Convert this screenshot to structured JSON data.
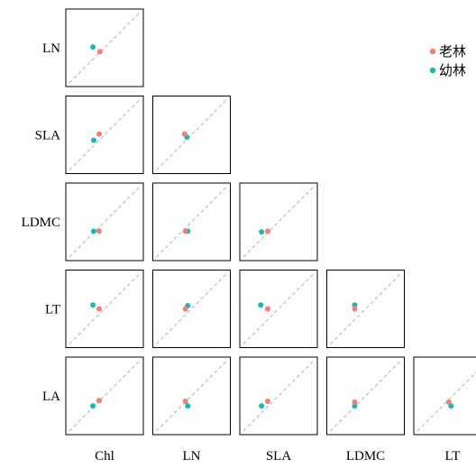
{
  "chart_data": {
    "type": "scatter",
    "variables_x": [
      "Chl",
      "LN",
      "SLA",
      "LDMC",
      "LT"
    ],
    "variables_y": [
      "LN",
      "SLA",
      "LDMC",
      "LT",
      "LA"
    ],
    "legend": {
      "position": "top-right",
      "items": [
        "老林",
        "幼林"
      ]
    },
    "colors": {
      "old": "#f07f7a",
      "young": "#17b9b5"
    },
    "diagonal_reference_line": true,
    "panels": [
      {
        "x": "Chl",
        "y": "LN",
        "old": [
          0.44,
          0.45
        ],
        "young": [
          0.35,
          0.51
        ]
      },
      {
        "x": "Chl",
        "y": "SLA",
        "old": [
          0.43,
          0.51
        ],
        "young": [
          0.36,
          0.43
        ]
      },
      {
        "x": "Chl",
        "y": "LDMC",
        "old": [
          0.43,
          0.38
        ],
        "young": [
          0.36,
          0.38
        ]
      },
      {
        "x": "Chl",
        "y": "LT",
        "old": [
          0.43,
          0.5
        ],
        "young": [
          0.35,
          0.55
        ]
      },
      {
        "x": "Chl",
        "y": "LA",
        "old": [
          0.43,
          0.44
        ],
        "young": [
          0.35,
          0.37
        ]
      },
      {
        "x": "LN",
        "y": "SLA",
        "old": [
          0.41,
          0.51
        ],
        "young": [
          0.44,
          0.47
        ]
      },
      {
        "x": "LN",
        "y": "LDMC",
        "old": [
          0.42,
          0.38
        ],
        "young": [
          0.45,
          0.38
        ]
      },
      {
        "x": "LN",
        "y": "LT",
        "old": [
          0.42,
          0.5
        ],
        "young": [
          0.45,
          0.54
        ]
      },
      {
        "x": "LN",
        "y": "LA",
        "old": [
          0.42,
          0.43
        ],
        "young": [
          0.45,
          0.37
        ]
      },
      {
        "x": "SLA",
        "y": "LDMC",
        "old": [
          0.36,
          0.38
        ],
        "young": [
          0.28,
          0.37
        ]
      },
      {
        "x": "SLA",
        "y": "LT",
        "old": [
          0.36,
          0.5
        ],
        "young": [
          0.27,
          0.55
        ]
      },
      {
        "x": "SLA",
        "y": "LA",
        "old": [
          0.36,
          0.43
        ],
        "young": [
          0.28,
          0.37
        ]
      },
      {
        "x": "LDMC",
        "y": "LT",
        "old": [
          0.36,
          0.5
        ],
        "young": [
          0.36,
          0.55
        ]
      },
      {
        "x": "LDMC",
        "y": "LA",
        "old": [
          0.36,
          0.42
        ],
        "young": [
          0.36,
          0.37
        ]
      },
      {
        "x": "LT",
        "y": "LA",
        "old": [
          0.45,
          0.42
        ],
        "young": [
          0.48,
          0.37
        ]
      }
    ]
  }
}
